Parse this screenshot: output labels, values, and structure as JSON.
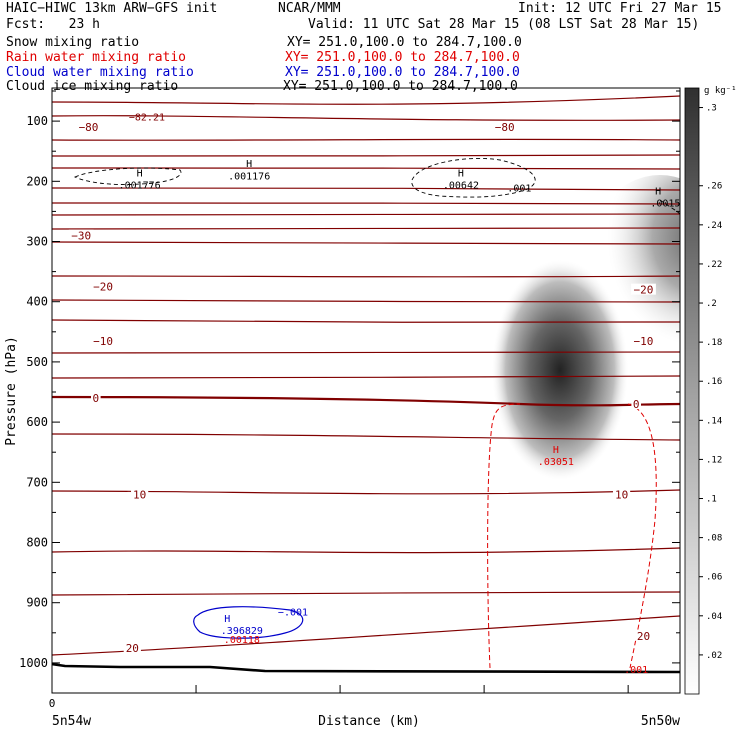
{
  "header": {
    "model": "HAIC−HIWC 13km ARW−GFS init",
    "center": "NCAR/MMM",
    "init": "Init: 12 UTC Fri 27 Mar 15",
    "fcst": "Fcst:   23 h",
    "valid": "Valid: 11 UTC Sat 28 Mar 15 (08 LST Sat 28 Mar 15)"
  },
  "fields": [
    {
      "name": "Snow mixing ratio",
      "xy": "XY= 251.0,100.0 to 284.7,100.0",
      "color": "#000000"
    },
    {
      "name": "Rain water mixing ratio",
      "xy": "XY= 251.0,100.0 to 284.7,100.0",
      "color": "#e00000"
    },
    {
      "name": "Cloud water mixing ratio",
      "xy": "XY= 251.0,100.0 to 284.7,100.0",
      "color": "#0000cc"
    },
    {
      "name": "Cloud ice mixing ratio",
      "xy": "XY= 251.0,100.0 to 284.7,100.0",
      "color": "#000000"
    }
  ],
  "chart_data": {
    "type": "heatmap",
    "ylabel": "Pressure (hPa)",
    "xlabel": "Distance (km)",
    "x_tick_labels": [
      "0"
    ],
    "x_range": [
      0,
      43
    ],
    "x_end_labels": [
      "5n54w",
      "5n50w"
    ],
    "yticks": [
      100,
      200,
      300,
      400,
      500,
      600,
      700,
      800,
      900,
      1000
    ],
    "ylim": [
      45,
      1050
    ],
    "colorbar": {
      "unit": "g kg⁻¹",
      "ticks": [
        ".02",
        ".04",
        ".06",
        ".08",
        ".1",
        ".12",
        ".14",
        ".16",
        ".18",
        ".2",
        ".22",
        ".24",
        ".26",
        ".3"
      ],
      "values": [
        0.02,
        0.04,
        0.06,
        0.08,
        0.1,
        0.12,
        0.14,
        0.16,
        0.18,
        0.2,
        0.22,
        0.24,
        0.26,
        0.3
      ]
    },
    "snow_shading": [
      {
        "x": 35,
        "p": 505,
        "value": 0.26
      },
      {
        "x": 42,
        "p": 250,
        "value": 0.18
      }
    ],
    "temperature_labels": [
      {
        "text": "−80",
        "x": 2.5,
        "p": 110
      },
      {
        "text": "−80",
        "x": 31,
        "p": 110
      },
      {
        "text": "−30",
        "x": 2,
        "p": 290
      },
      {
        "text": "−20",
        "x": 3.5,
        "p": 375
      },
      {
        "text": "−20",
        "x": 40.5,
        "p": 380
      },
      {
        "text": "−10",
        "x": 3.5,
        "p": 465
      },
      {
        "text": "−10",
        "x": 40.5,
        "p": 465
      },
      {
        "text": "0",
        "x": 3,
        "p": 560
      },
      {
        "text": "0",
        "x": 40,
        "p": 570
      },
      {
        "text": "10",
        "x": 6,
        "p": 720
      },
      {
        "text": "10",
        "x": 39,
        "p": 720
      },
      {
        "text": "20",
        "x": 5.5,
        "p": 975
      },
      {
        "text": "20",
        "x": 40.5,
        "p": 955
      }
    ],
    "extrema_labels": [
      {
        "text": "−82.21",
        "x": 6.5,
        "p": 92,
        "color": "#800000"
      },
      {
        "text": "H",
        "x": 6,
        "p": 185,
        "color": "#000000"
      },
      {
        "text": ".001776",
        "x": 6,
        "p": 205,
        "color": "#000000"
      },
      {
        "text": "H",
        "x": 13.5,
        "p": 170,
        "color": "#000000"
      },
      {
        "text": ".001176",
        "x": 13.5,
        "p": 190,
        "color": "#000000"
      },
      {
        "text": "H",
        "x": 28,
        "p": 185,
        "color": "#000000"
      },
      {
        "text": ".00642",
        "x": 28,
        "p": 205,
        "color": "#000000"
      },
      {
        "text": ".001",
        "x": 32,
        "p": 210,
        "color": "#000000"
      },
      {
        "text": "H",
        "x": 41.5,
        "p": 215,
        "color": "#000000"
      },
      {
        "text": ".0015",
        "x": 42,
        "p": 235,
        "color": "#000000"
      },
      {
        "text": "H",
        "x": 34.5,
        "p": 645,
        "color": "#e00000"
      },
      {
        "text": ".03051",
        "x": 34.5,
        "p": 665,
        "color": "#e00000"
      },
      {
        "text": ".001",
        "x": 40,
        "p": 1010,
        "color": "#e00000"
      },
      {
        "text": "H",
        "x": 12,
        "p": 925,
        "color": "#0000cc"
      },
      {
        "text": ".396829",
        "x": 13,
        "p": 945,
        "color": "#0000cc"
      },
      {
        "text": ".00118",
        "x": 13,
        "p": 960,
        "color": "#e00000"
      },
      {
        "text": "−.001",
        "x": 16.5,
        "p": 915,
        "color": "#0000cc"
      }
    ]
  }
}
